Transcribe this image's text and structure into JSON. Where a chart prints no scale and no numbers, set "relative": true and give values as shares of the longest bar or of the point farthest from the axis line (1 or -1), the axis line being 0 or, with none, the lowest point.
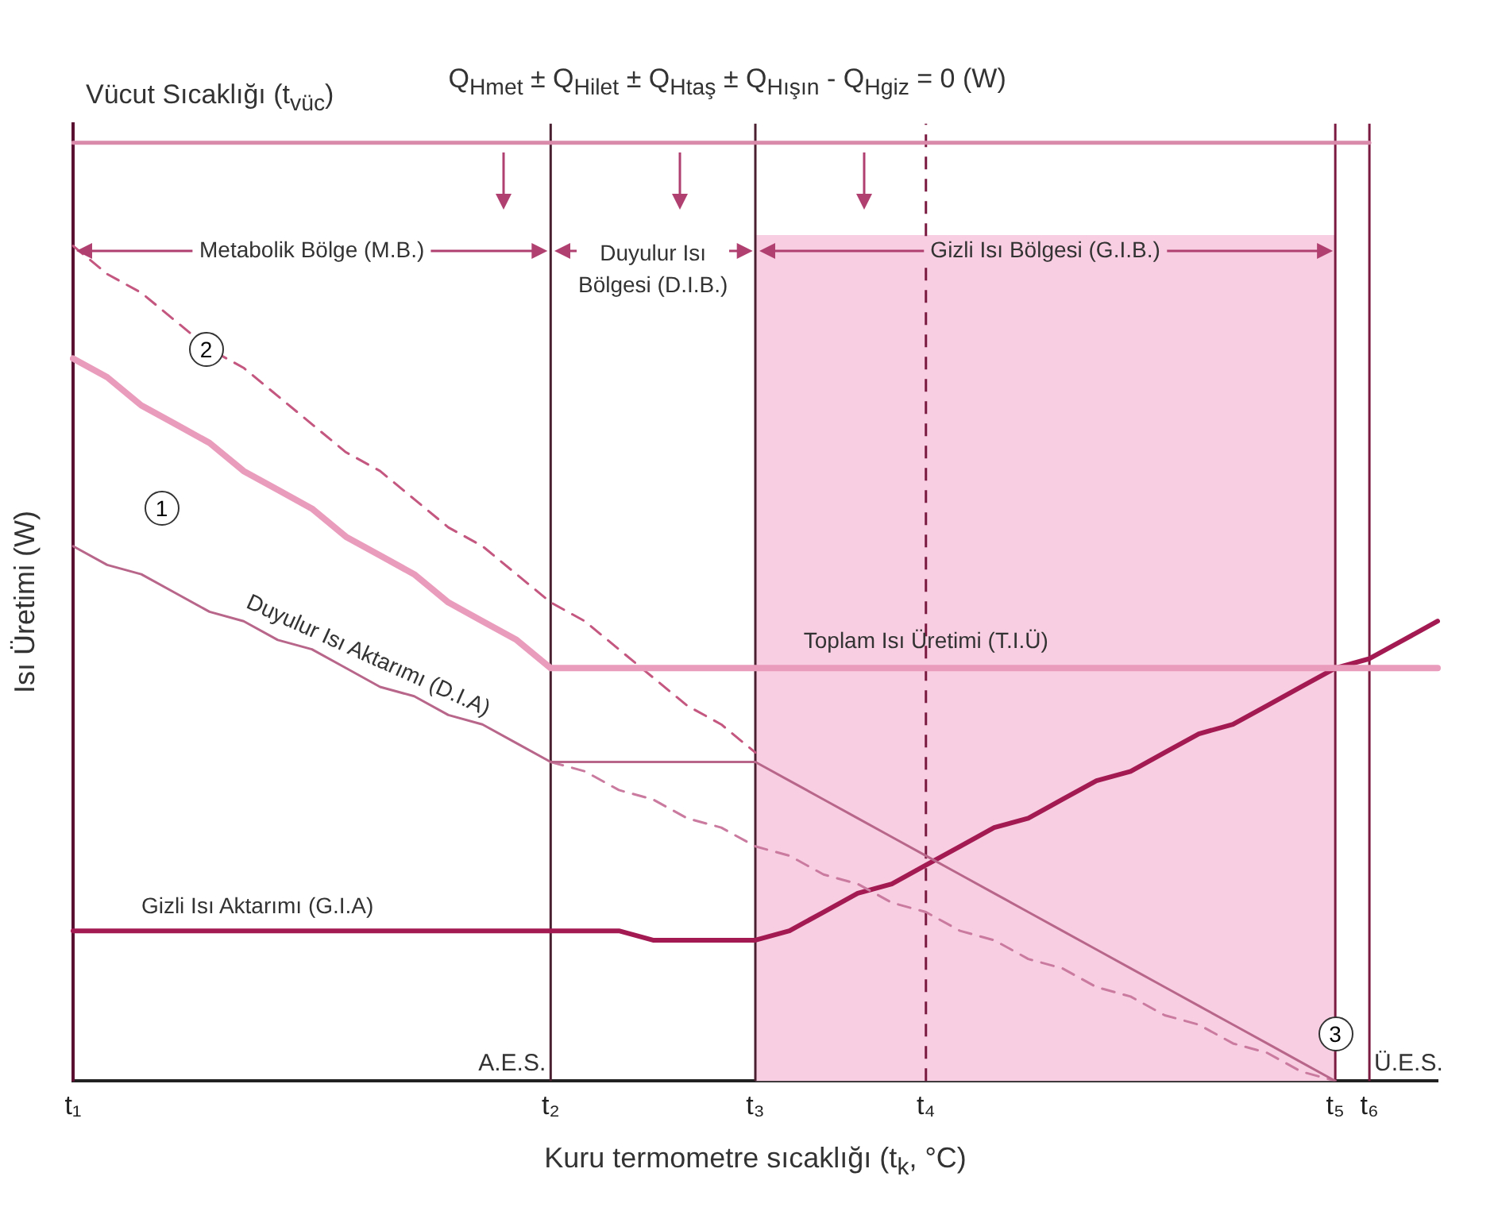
{
  "chart_data": {
    "type": "line",
    "relative": true,
    "xlabel": "Kuru termometre sıcaklığı (t$_{k}$, °C)",
    "ylabel": "Isı Üretimi (W)",
    "categories": [
      "t₁",
      null,
      null,
      null,
      null,
      null,
      null,
      null,
      null,
      null,
      null,
      null,
      null,
      null,
      "t₂",
      null,
      null,
      null,
      null,
      null,
      "t₃",
      null,
      null,
      null,
      null,
      "t₄",
      null,
      null,
      null,
      null,
      null,
      null,
      null,
      null,
      null,
      null,
      null,
      "t₅",
      "t₆",
      null,
      null
    ],
    "series": [
      {
        "name": "Vücut Sıcaklığı (t$_{vüc}$)",
        "color": "#d98aaa",
        "line_style": "solid",
        "values": [
          1,
          1,
          1,
          1,
          1,
          1,
          1,
          1,
          1,
          1,
          1,
          1,
          1,
          1,
          1,
          1,
          1,
          1,
          1,
          1,
          1,
          1,
          1,
          1,
          1,
          1,
          1,
          1,
          1,
          1,
          1,
          1,
          1,
          1,
          1,
          1,
          1,
          1,
          1,
          null,
          null
        ]
      },
      {
        "name": "Toplam Isı Üretimi (T.I.Ü)",
        "color": "#ea9cbc",
        "line_style": "solid",
        "values": [
          0.77,
          0.75,
          0.72,
          0.7,
          0.68,
          0.65,
          0.63,
          0.61,
          0.58,
          0.56,
          0.54,
          0.51,
          0.49,
          0.47,
          0.44,
          0.44,
          0.44,
          0.44,
          0.44,
          0.44,
          0.44,
          0.44,
          0.44,
          0.44,
          0.44,
          0.44,
          0.44,
          0.44,
          0.44,
          0.44,
          0.44,
          0.44,
          0.44,
          0.44,
          0.44,
          0.44,
          0.44,
          0.44,
          0.44,
          0.44,
          0.44
        ]
      },
      {
        "name": "Duyulur Isı Aktarımı (D.I.A)",
        "color": "#b8668a",
        "line_style": "solid",
        "values": [
          0.57,
          0.55,
          0.54,
          0.52,
          0.5,
          0.49,
          0.47,
          0.46,
          0.44,
          0.42,
          0.41,
          0.39,
          0.38,
          0.36,
          0.34,
          0.34,
          0.34,
          0.34,
          0.34,
          0.34,
          0.34,
          0.32,
          0.3,
          0.28,
          0.26,
          0.24,
          0.22,
          0.2,
          0.18,
          0.16,
          0.14,
          0.12,
          0.1,
          0.08,
          0.06,
          0.04,
          0.02,
          0,
          null,
          null,
          null
        ]
      },
      {
        "color": "#c4577f",
        "line_style": "dashed",
        "values": [
          0.89,
          0.86,
          0.84,
          0.81,
          0.78,
          0.76,
          0.73,
          0.7,
          0.67,
          0.65,
          0.62,
          0.59,
          0.57,
          0.54,
          0.51,
          0.49,
          0.46,
          0.43,
          0.4,
          0.38,
          0.35,
          null,
          null,
          null,
          null,
          null,
          null,
          null,
          null,
          null,
          null,
          null,
          null,
          null,
          null,
          null,
          null,
          null,
          null,
          null,
          null
        ]
      },
      {
        "color": "#c97a9e",
        "line_style": "dashed",
        "values": [
          null,
          null,
          null,
          null,
          null,
          null,
          null,
          null,
          null,
          null,
          null,
          null,
          null,
          null,
          0.34,
          0.33,
          0.31,
          0.3,
          0.28,
          0.27,
          0.25,
          0.24,
          0.22,
          0.21,
          0.19,
          0.18,
          0.16,
          0.15,
          0.13,
          0.12,
          0.1,
          0.09,
          0.07,
          0.06,
          0.04,
          0.03,
          0.01,
          0,
          null,
          null,
          null
        ]
      },
      {
        "name": "Gizli Isı Aktarımı (G.I.A)",
        "color": "#a31a52",
        "line_style": "solid",
        "values": [
          0.16,
          0.16,
          0.16,
          0.16,
          0.16,
          0.16,
          0.16,
          0.16,
          0.16,
          0.16,
          0.16,
          0.16,
          0.16,
          0.16,
          0.16,
          0.16,
          0.16,
          0.15,
          0.15,
          0.15,
          0.15,
          0.16,
          0.18,
          0.2,
          0.21,
          0.23,
          0.25,
          0.27,
          0.28,
          0.3,
          0.32,
          0.33,
          0.35,
          0.37,
          0.38,
          0.4,
          0.42,
          0.44,
          0.45,
          0.47,
          0.49
        ]
      }
    ],
    "bands": [
      {
        "axis": "x",
        "from": "t₃",
        "to": "t₅",
        "label": "Gizli Isı Bölgesi (G.I.B.)",
        "color": "#f8cfe2"
      }
    ],
    "ref_lines": [
      {
        "axis": "x",
        "value": "t₂",
        "label": "A.E.S.",
        "color": "#4a2030",
        "line_style": "solid"
      },
      {
        "axis": "x",
        "value": "t₃",
        "color": "#4a2030",
        "line_style": "solid"
      },
      {
        "axis": "x",
        "value": "t₄",
        "color": "#7a1a40",
        "line_style": "dashed"
      },
      {
        "axis": "x",
        "value": "t₅",
        "color": "#7a1a40",
        "line_style": "solid"
      },
      {
        "axis": "x",
        "value": "t₆",
        "label": "Ü.E.S.",
        "color": "#7a1a40",
        "line_style": "solid"
      }
    ],
    "annotations": [
      "Q$_{Hmet}$ ± Q$_{Hilet}$ ± Q$_{Htaş}$ ± Q$_{Hışın}$ - Q$_{Hgiz}$ = 0 (W)",
      "Metabolik Bölge (M.B.)",
      "Duyulur Isı Bölgesi (D.I.B.)",
      "1",
      "2",
      "3"
    ],
    "legend": false,
    "grid": false,
    "marker": "none",
    "tick_labels": "x"
  }
}
